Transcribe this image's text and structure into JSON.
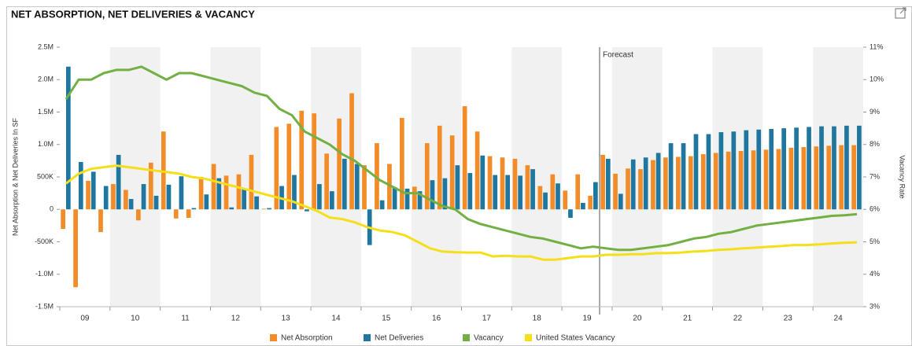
{
  "chart_data": {
    "type": "combo",
    "title": "NET ABSORPTION, NET DELIVERIES & VACANCY",
    "y_label": "Net Absorption & Net Deliveries In SF",
    "y2_label": "Vacancy Rate",
    "forecast_label": "Forecast",
    "categories": [
      null,
      "09",
      null,
      null,
      null,
      "10",
      null,
      null,
      null,
      "11",
      null,
      null,
      null,
      "12",
      null,
      null,
      null,
      "13",
      null,
      null,
      null,
      "14",
      null,
      null,
      null,
      "15",
      null,
      null,
      null,
      "16",
      null,
      null,
      null,
      "17",
      null,
      null,
      null,
      "18",
      null,
      null,
      null,
      "19",
      null,
      null,
      null,
      "20",
      null,
      null,
      null,
      "21",
      null,
      null,
      null,
      "22",
      null,
      null,
      null,
      "23",
      null,
      null,
      null,
      "24",
      null,
      null
    ],
    "ylim": [
      -1500000,
      2500000
    ],
    "yticks": [
      {
        "value": 2500000,
        "label": "2.5M"
      },
      {
        "value": 2000000,
        "label": "2.0M"
      },
      {
        "value": 1500000,
        "label": "1.5M"
      },
      {
        "value": 1000000,
        "label": "1.0M"
      },
      {
        "value": 500000,
        "label": "500K"
      },
      0,
      {
        "value": -500000,
        "label": "-500K"
      },
      {
        "value": -1000000,
        "label": "-1.0M"
      },
      {
        "value": -1500000,
        "label": "-1.5M"
      }
    ],
    "y2lim": [
      3,
      11
    ],
    "y2ticks": [
      {
        "value": 11,
        "label": "11%"
      },
      {
        "value": 10,
        "label": "10%"
      },
      {
        "value": 9,
        "label": "9%"
      },
      {
        "value": 8,
        "label": "8%"
      },
      {
        "value": 7,
        "label": "7%"
      },
      {
        "value": 6,
        "label": "6%"
      },
      {
        "value": 5,
        "label": "5%"
      },
      {
        "value": 4,
        "label": "4%"
      },
      {
        "value": 3,
        "label": "3%"
      }
    ],
    "series": [
      {
        "name": "Net Absorption",
        "type": "bar",
        "color": "#f28c28",
        "values": [
          -300000,
          -1200000,
          440000,
          -350000,
          390000,
          300000,
          -170000,
          720000,
          1200000,
          -140000,
          -130000,
          500000,
          700000,
          520000,
          540000,
          840000,
          10000,
          1270000,
          1320000,
          1520000,
          1480000,
          860000,
          1400000,
          1790000,
          680000,
          1020000,
          700000,
          1410000,
          350000,
          1020000,
          1290000,
          1140000,
          1590000,
          1200000,
          820000,
          800000,
          780000,
          680000,
          360000,
          540000,
          290000,
          540000,
          210000,
          840000,
          550000,
          630000,
          620000,
          760000,
          800000,
          810000,
          820000,
          850000,
          870000,
          890000,
          900000,
          910000,
          920000,
          930000,
          950000,
          960000,
          970000,
          980000,
          990000,
          990000
        ]
      },
      {
        "name": "Net Deliveries",
        "type": "bar",
        "color": "#1f77a0",
        "values": [
          2200000,
          730000,
          580000,
          360000,
          840000,
          160000,
          390000,
          210000,
          380000,
          510000,
          20000,
          230000,
          480000,
          30000,
          320000,
          200000,
          20000,
          360000,
          530000,
          -30000,
          390000,
          280000,
          780000,
          700000,
          -550000,
          140000,
          340000,
          320000,
          280000,
          450000,
          480000,
          680000,
          560000,
          830000,
          530000,
          530000,
          520000,
          620000,
          260000,
          400000,
          -130000,
          100000,
          420000,
          780000,
          240000,
          770000,
          800000,
          870000,
          1020000,
          1020000,
          1160000,
          1160000,
          1190000,
          1200000,
          1220000,
          1230000,
          1240000,
          1250000,
          1260000,
          1270000,
          1280000,
          1280000,
          1290000,
          1290000
        ]
      },
      {
        "name": "Vacancy",
        "type": "line",
        "axis": "y2",
        "color": "#72b043",
        "values": [
          9.4,
          10.0,
          10.0,
          10.2,
          10.3,
          10.3,
          10.4,
          10.2,
          10.0,
          10.2,
          10.2,
          10.1,
          10.0,
          9.9,
          9.8,
          9.6,
          9.5,
          9.1,
          8.9,
          8.4,
          8.2,
          8.0,
          7.7,
          7.5,
          7.2,
          6.9,
          6.7,
          6.5,
          6.5,
          6.3,
          6.1,
          6.0,
          5.7,
          5.55,
          5.45,
          5.35,
          5.25,
          5.15,
          5.1,
          5.0,
          4.9,
          4.8,
          4.85,
          4.8,
          4.75,
          4.75,
          4.8,
          4.85,
          4.9,
          5.0,
          5.1,
          5.15,
          5.25,
          5.3,
          5.4,
          5.5,
          5.55,
          5.6,
          5.65,
          5.7,
          5.75,
          5.8,
          5.82,
          5.85
        ]
      },
      {
        "name": "United States Vacancy",
        "type": "line",
        "axis": "y2",
        "color": "#f5df1b",
        "values": [
          6.8,
          7.1,
          7.25,
          7.3,
          7.35,
          7.3,
          7.25,
          7.2,
          7.15,
          7.1,
          7.0,
          6.95,
          6.85,
          6.75,
          6.65,
          6.55,
          6.45,
          6.35,
          6.25,
          6.1,
          5.95,
          5.75,
          5.7,
          5.6,
          5.45,
          5.35,
          5.3,
          5.2,
          5.0,
          4.8,
          4.7,
          4.68,
          4.67,
          4.67,
          4.55,
          4.57,
          4.55,
          4.55,
          4.45,
          4.45,
          4.5,
          4.55,
          4.55,
          4.6,
          4.6,
          4.62,
          4.62,
          4.65,
          4.65,
          4.67,
          4.7,
          4.72,
          4.75,
          4.77,
          4.8,
          4.82,
          4.85,
          4.87,
          4.9,
          4.9,
          4.92,
          4.95,
          4.97,
          4.98
        ]
      }
    ]
  }
}
